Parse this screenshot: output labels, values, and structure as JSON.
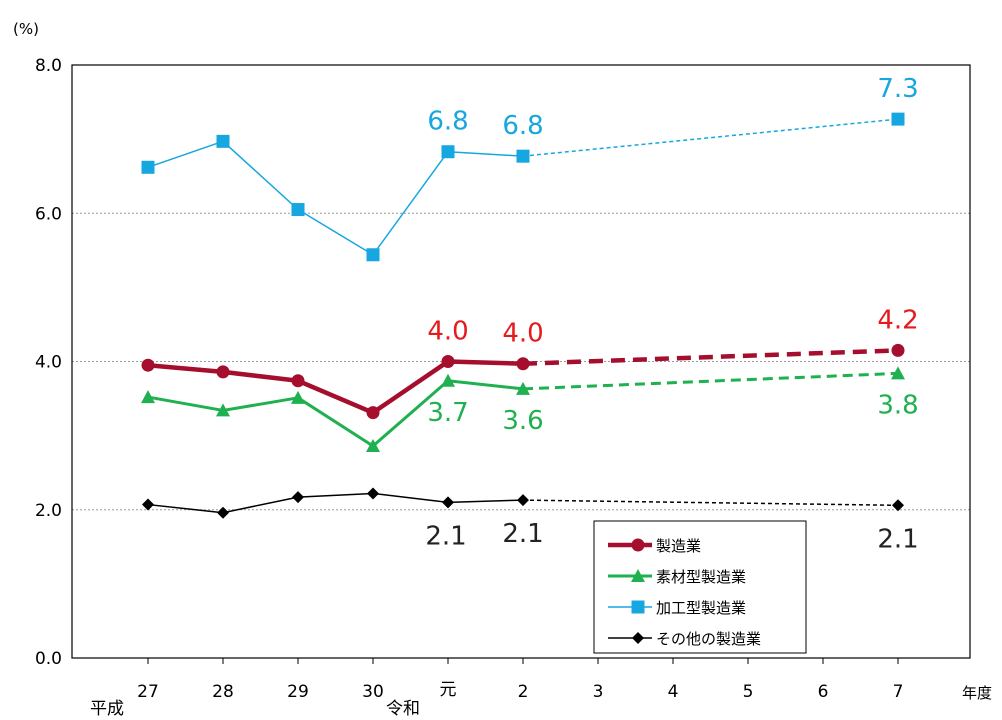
{
  "chart_data": {
    "type": "line",
    "title": "",
    "ylabel": "(%)",
    "xlabel": "年度",
    "ylim": [
      0,
      8
    ],
    "yticks": [
      "0.0",
      "2.0",
      "4.0",
      "6.0",
      "8.0"
    ],
    "categories": [
      "27",
      "28",
      "29",
      "30",
      "元",
      "2",
      "3",
      "4",
      "5",
      "6",
      "7"
    ],
    "era_labels": {
      "heisei": "平成",
      "reiwa": "令和"
    },
    "grid": true,
    "legend_position": "bottom-right",
    "series": [
      {
        "name": "製造業",
        "color": "#a50e2d",
        "marker": "circle",
        "values": [
          3.95,
          3.86,
          3.74,
          3.31,
          4.0,
          3.97,
          null,
          null,
          null,
          null,
          4.15
        ],
        "labels": [
          null,
          null,
          null,
          null,
          "4.0",
          "4.0",
          null,
          null,
          null,
          null,
          "4.2"
        ],
        "label_color": "#e6191c"
      },
      {
        "name": "素材型製造業",
        "color": "#1fb04f",
        "marker": "triangle",
        "values": [
          3.52,
          3.34,
          3.51,
          2.86,
          3.74,
          3.63,
          null,
          null,
          null,
          null,
          3.84
        ],
        "labels": [
          null,
          null,
          null,
          null,
          "3.7",
          "3.6",
          null,
          null,
          null,
          null,
          "3.8"
        ],
        "label_color": "#1fb04f"
      },
      {
        "name": "加工型製造業",
        "color": "#16a7e0",
        "marker": "square",
        "values": [
          6.62,
          6.97,
          6.05,
          5.44,
          6.83,
          6.77,
          null,
          null,
          null,
          null,
          7.27
        ],
        "labels": [
          null,
          null,
          null,
          null,
          "6.8",
          "6.8",
          null,
          null,
          null,
          null,
          "7.3"
        ],
        "label_color": "#16a7e0"
      },
      {
        "name": "その他の製造業",
        "color": "#000000",
        "marker": "diamond",
        "values": [
          2.07,
          1.96,
          2.17,
          2.22,
          2.1,
          2.13,
          null,
          null,
          null,
          null,
          2.06
        ],
        "labels": [
          null,
          null,
          null,
          null,
          "2.1",
          "2.1",
          null,
          null,
          null,
          null,
          "2.1"
        ],
        "label_color": "#222222"
      }
    ]
  }
}
